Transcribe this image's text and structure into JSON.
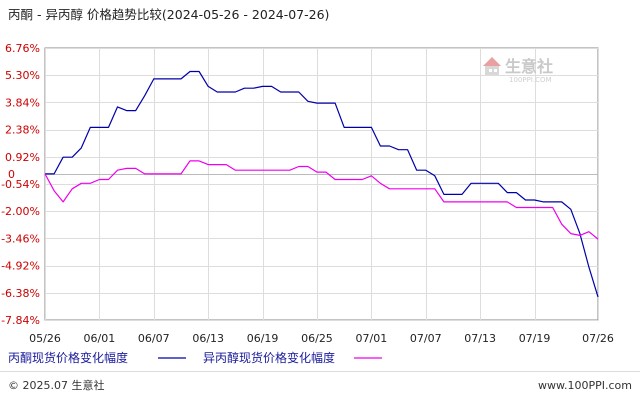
{
  "chart_data": {
    "type": "line",
    "title": "丙酮 - 异丙醇 价格趋势比较(2024-05-26 - 2024-07-26)",
    "y_ticks": [
      "6.76%",
      "5.30%",
      "3.84%",
      "2.38%",
      "0.92%",
      "-0.54%",
      "-2.00%",
      "-3.46%",
      "-4.92%",
      "-6.38%",
      "-7.84%"
    ],
    "y_tick_values": [
      6.76,
      5.3,
      3.84,
      2.38,
      0.92,
      -0.54,
      -2.0,
      -3.46,
      -4.92,
      -6.38,
      -7.84
    ],
    "y_zero_label": "0",
    "ylim": [
      -7.84,
      6.76
    ],
    "x_ticks": [
      "05/26",
      "06/01",
      "06/07",
      "06/13",
      "06/19",
      "06/25",
      "07/01",
      "07/07",
      "07/13",
      "07/19",
      "07/26"
    ],
    "x_tick_days": [
      0,
      6,
      12,
      18,
      24,
      30,
      36,
      42,
      48,
      54,
      61
    ],
    "xlim": [
      0,
      61
    ],
    "grid": true,
    "legend_position": "bottom",
    "series": [
      {
        "name": "丙酮现货价格变化幅度",
        "color": "#0000aa",
        "x": [
          0,
          1,
          2,
          3,
          4,
          5,
          6,
          7,
          8,
          9,
          10,
          11,
          12,
          13,
          14,
          15,
          16,
          17,
          18,
          19,
          20,
          21,
          22,
          23,
          24,
          25,
          26,
          27,
          28,
          29,
          30,
          31,
          32,
          33,
          34,
          35,
          36,
          37,
          38,
          39,
          40,
          41,
          42,
          43,
          44,
          45,
          46,
          47,
          48,
          49,
          50,
          51,
          52,
          53,
          54,
          55,
          56,
          57,
          58,
          59,
          60,
          61
        ],
        "y": [
          0,
          0,
          0.9,
          0.9,
          1.4,
          2.5,
          2.5,
          2.5,
          3.6,
          3.4,
          3.4,
          4.2,
          5.1,
          5.1,
          5.1,
          5.1,
          5.5,
          5.5,
          4.7,
          4.4,
          4.4,
          4.4,
          4.6,
          4.6,
          4.7,
          4.7,
          4.4,
          4.4,
          4.4,
          3.9,
          3.8,
          3.8,
          3.8,
          2.5,
          2.5,
          2.5,
          2.5,
          1.5,
          1.5,
          1.3,
          1.3,
          0.2,
          0.2,
          -0.1,
          -1.1,
          -1.1,
          -1.1,
          -0.5,
          -0.5,
          -0.5,
          -0.5,
          -1.0,
          -1.0,
          -1.4,
          -1.4,
          -1.5,
          -1.5,
          -1.5,
          -1.9,
          -3.2,
          -5.0,
          -6.6
        ]
      },
      {
        "name": "异丙醇现货价格变化幅度",
        "color": "#ee00ee",
        "x": [
          0,
          1,
          2,
          3,
          4,
          5,
          6,
          7,
          8,
          9,
          10,
          11,
          12,
          13,
          14,
          15,
          16,
          17,
          18,
          19,
          20,
          21,
          22,
          23,
          24,
          25,
          26,
          27,
          28,
          29,
          30,
          31,
          32,
          33,
          34,
          35,
          36,
          37,
          38,
          39,
          40,
          41,
          42,
          43,
          44,
          45,
          46,
          47,
          48,
          49,
          50,
          51,
          52,
          53,
          54,
          55,
          56,
          57,
          58,
          59,
          60,
          61
        ],
        "y": [
          0,
          -0.9,
          -1.5,
          -0.8,
          -0.5,
          -0.5,
          -0.3,
          -0.3,
          0.2,
          0.3,
          0.3,
          0,
          0,
          0,
          0,
          0,
          0.7,
          0.7,
          0.5,
          0.5,
          0.5,
          0.2,
          0.2,
          0.2,
          0.2,
          0.2,
          0.2,
          0.2,
          0.4,
          0.4,
          0.1,
          0.1,
          -0.3,
          -0.3,
          -0.3,
          -0.3,
          -0.1,
          -0.5,
          -0.8,
          -0.8,
          -0.8,
          -0.8,
          -0.8,
          -0.8,
          -1.5,
          -1.5,
          -1.5,
          -1.5,
          -1.5,
          -1.5,
          -1.5,
          -1.5,
          -1.8,
          -1.8,
          -1.8,
          -1.8,
          -1.8,
          -2.7,
          -3.2,
          -3.3,
          -3.1,
          -3.5
        ]
      }
    ]
  },
  "watermark": {
    "text": "生意社",
    "sub": "100PPI.COM"
  },
  "footer": {
    "left": "© 2025.07 生意社",
    "right": "www.100PPI.com"
  }
}
